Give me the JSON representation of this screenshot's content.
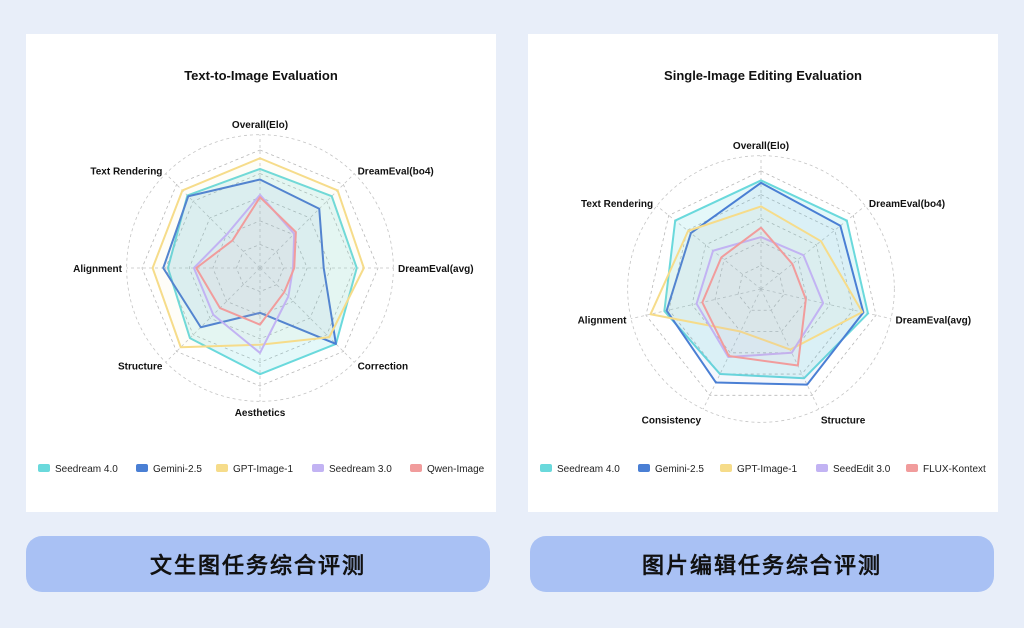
{
  "captions": {
    "left": "文生图任务综合评测",
    "right": "图片编辑任务综合评测"
  },
  "chart_data": [
    {
      "type": "radar",
      "title": "Text-to-Image Evaluation",
      "axes": [
        "Overall(Elo)",
        "DreamEval(bo4)",
        "DreamEval(avg)",
        "Correction",
        "Aesthetics",
        "Structure",
        "Alignment",
        "Text Rendering"
      ],
      "rlim": [
        0,
        1
      ],
      "grid": true,
      "legend_position": "bottom",
      "series": [
        {
          "name": "Seedream 4.0",
          "color": "#6ad9dc",
          "values": [
            0.84,
            0.86,
            0.82,
            0.91,
            0.9,
            0.84,
            0.78,
            0.87
          ]
        },
        {
          "name": "Gemini-2.5",
          "color": "#4a7fd4",
          "values": [
            0.75,
            0.71,
            0.54,
            0.91,
            0.38,
            0.71,
            0.82,
            0.86
          ]
        },
        {
          "name": "GPT-Image-1",
          "color": "#f6dc8a",
          "values": [
            0.93,
            0.93,
            0.88,
            0.83,
            0.65,
            0.95,
            0.91,
            0.93
          ]
        },
        {
          "name": "Seedream 3.0",
          "color": "#c2b3f3",
          "values": [
            0.62,
            0.41,
            0.28,
            0.34,
            0.72,
            0.56,
            0.56,
            0.4
          ]
        },
        {
          "name": "Qwen-Image",
          "color": "#f19c9c",
          "values": [
            0.6,
            0.43,
            0.29,
            0.29,
            0.48,
            0.48,
            0.54,
            0.33
          ]
        }
      ]
    },
    {
      "type": "radar",
      "title": "Single-Image Editing Evaluation",
      "axes": [
        "Overall(Elo)",
        "DreamEval(bo4)",
        "DreamEval(avg)",
        "Structure",
        "Consistency",
        "Alignment",
        "Text Rendering"
      ],
      "rlim": [
        0,
        1
      ],
      "grid": true,
      "legend_position": "bottom",
      "series": [
        {
          "name": "Seedream 4.0",
          "color": "#6ad9dc",
          "values": [
            0.92,
            0.93,
            0.93,
            0.84,
            0.8,
            0.84,
            0.93
          ]
        },
        {
          "name": "Gemini-2.5",
          "color": "#4a7fd4",
          "values": [
            0.9,
            0.86,
            0.89,
            0.9,
            0.88,
            0.82,
            0.76
          ]
        },
        {
          "name": "GPT-Image-1",
          "color": "#f6dc8a",
          "values": [
            0.7,
            0.65,
            0.88,
            0.57,
            0.4,
            0.96,
            0.79
          ]
        },
        {
          "name": "SeedEdit 3.0",
          "color": "#c2b3f3",
          "values": [
            0.44,
            0.46,
            0.54,
            0.6,
            0.64,
            0.56,
            0.52
          ]
        },
        {
          "name": "FLUX-Kontext",
          "color": "#f19c9c",
          "values": [
            0.52,
            0.34,
            0.39,
            0.72,
            0.63,
            0.51,
            0.43
          ]
        }
      ]
    }
  ]
}
